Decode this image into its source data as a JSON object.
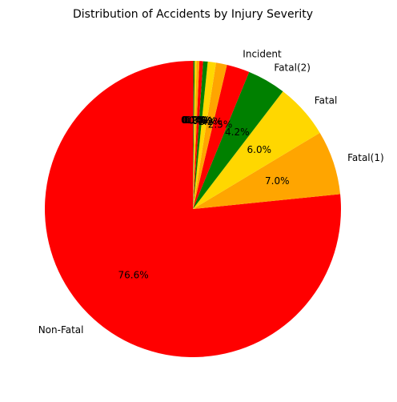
{
  "chart_data": {
    "type": "pie",
    "title": "Distribution of Accidents by Injury Severity",
    "start_angle_deg": 90,
    "direction": "counterclockwise",
    "slices": [
      {
        "label": "Non-Fatal",
        "percent": 76.6,
        "color": "#ff0000"
      },
      {
        "label": "Fatal(1)",
        "percent": 7.0,
        "color": "#ffa500"
      },
      {
        "label": "Fatal",
        "percent": 6.0,
        "color": "#ffd700"
      },
      {
        "label": "Fatal(2)",
        "percent": 4.2,
        "color": "#008000"
      },
      {
        "label": "Incident",
        "percent": 2.5,
        "color": "#ff0000"
      },
      {
        "label": "",
        "percent": 1.2,
        "color": "#ffa500"
      },
      {
        "label": "",
        "percent": 0.9,
        "color": "#ffd700"
      },
      {
        "label": "",
        "percent": 0.5,
        "color": "#008000"
      },
      {
        "label": "",
        "percent": 0.4,
        "color": "#ff0000"
      },
      {
        "label": "",
        "percent": 0.3,
        "color": "#ffa500"
      },
      {
        "label": "",
        "percent": 0.2,
        "color": "#ffd700"
      },
      {
        "label": "",
        "percent": 0.1,
        "color": "#008000"
      },
      {
        "label": "",
        "percent": 0.1,
        "color": "#8b4513"
      }
    ]
  }
}
